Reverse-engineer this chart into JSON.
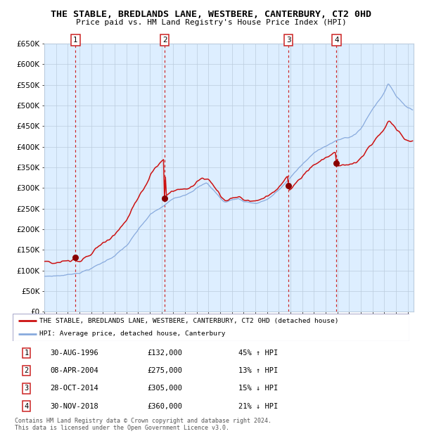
{
  "title": "THE STABLE, BREDLANDS LANE, WESTBERE, CANTERBURY, CT2 0HD",
  "subtitle": "Price paid vs. HM Land Registry's House Price Index (HPI)",
  "ylim": [
    0,
    650000
  ],
  "yticks": [
    0,
    50000,
    100000,
    150000,
    200000,
    250000,
    300000,
    350000,
    400000,
    450000,
    500000,
    550000,
    600000,
    650000
  ],
  "ytick_labels": [
    "£0",
    "£50K",
    "£100K",
    "£150K",
    "£200K",
    "£250K",
    "£300K",
    "£350K",
    "£400K",
    "£450K",
    "£500K",
    "£550K",
    "£600K",
    "£650K"
  ],
  "hpi_color": "#88aadd",
  "price_color": "#cc1111",
  "dot_color": "#880000",
  "dashed_color": "#cc2222",
  "bg_color": "#ddeeff",
  "grid_color": "#bbccdd",
  "sale_dates": [
    1996.66,
    2004.27,
    2014.83,
    2018.92
  ],
  "sale_prices": [
    132000,
    275000,
    305000,
    360000
  ],
  "sale_labels": [
    "1",
    "2",
    "3",
    "4"
  ],
  "legend_property": "THE STABLE, BREDLANDS LANE, WESTBERE, CANTERBURY, CT2 0HD (detached house)",
  "legend_hpi": "HPI: Average price, detached house, Canterbury",
  "table_rows": [
    [
      "1",
      "30-AUG-1996",
      "£132,000",
      "45% ↑ HPI"
    ],
    [
      "2",
      "08-APR-2004",
      "£275,000",
      "13% ↑ HPI"
    ],
    [
      "3",
      "28-OCT-2014",
      "£305,000",
      "15% ↓ HPI"
    ],
    [
      "4",
      "30-NOV-2018",
      "£360,000",
      "21% ↓ HPI"
    ]
  ],
  "footnote": "Contains HM Land Registry data © Crown copyright and database right 2024.\nThis data is licensed under the Open Government Licence v3.0.",
  "xmin": 1994.0,
  "xmax": 2025.5
}
